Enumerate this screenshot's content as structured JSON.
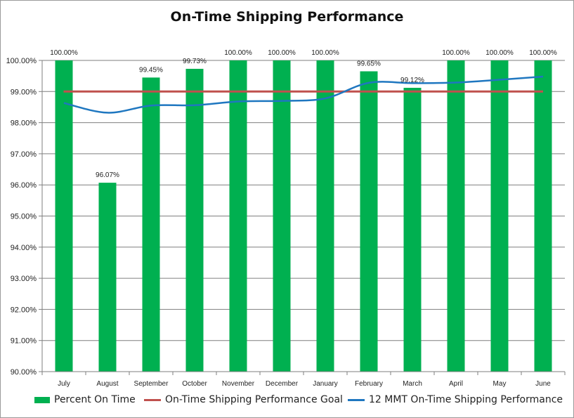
{
  "colors": {
    "bar": "#00b050",
    "goal": "#c0504d",
    "mmt": "#1f77c0",
    "grid": "#7f7f7f"
  },
  "chart_data": {
    "type": "bar",
    "title": "On-Time Shipping Performance",
    "xlabel": "",
    "ylabel": "",
    "ylim": [
      90,
      100
    ],
    "y_ticks": [
      "90.00%",
      "91.00%",
      "92.00%",
      "93.00%",
      "94.00%",
      "95.00%",
      "96.00%",
      "97.00%",
      "98.00%",
      "99.00%",
      "100.00%"
    ],
    "categories": [
      "July",
      "August",
      "September",
      "October",
      "November",
      "December",
      "January",
      "February",
      "March",
      "April",
      "May",
      "June"
    ],
    "series": [
      {
        "name": "Percent On Time",
        "type": "bar",
        "values": [
          100.0,
          96.07,
          99.45,
          99.73,
          100.0,
          100.0,
          100.0,
          99.65,
          99.12,
          100.0,
          100.0,
          100.0
        ],
        "labels": [
          "100.00%",
          "96.07%",
          "99.45%",
          "99.73%",
          "100.00%",
          "100.00%",
          "100.00%",
          "99.65%",
          "99.12%",
          "100.00%",
          "100.00%",
          "100.00%"
        ]
      },
      {
        "name": "On-Time Shipping Performance Goal",
        "type": "line",
        "values": [
          99.0,
          99.0,
          99.0,
          99.0,
          99.0,
          99.0,
          99.0,
          99.0,
          99.0,
          99.0,
          99.0,
          99.0
        ]
      },
      {
        "name": "12 MMT On-Time Shipping Performance",
        "type": "line",
        "values": [
          98.63,
          98.32,
          98.55,
          98.56,
          98.68,
          98.7,
          98.78,
          99.28,
          99.27,
          99.29,
          99.38,
          99.48
        ]
      }
    ],
    "legend": "bottom"
  }
}
